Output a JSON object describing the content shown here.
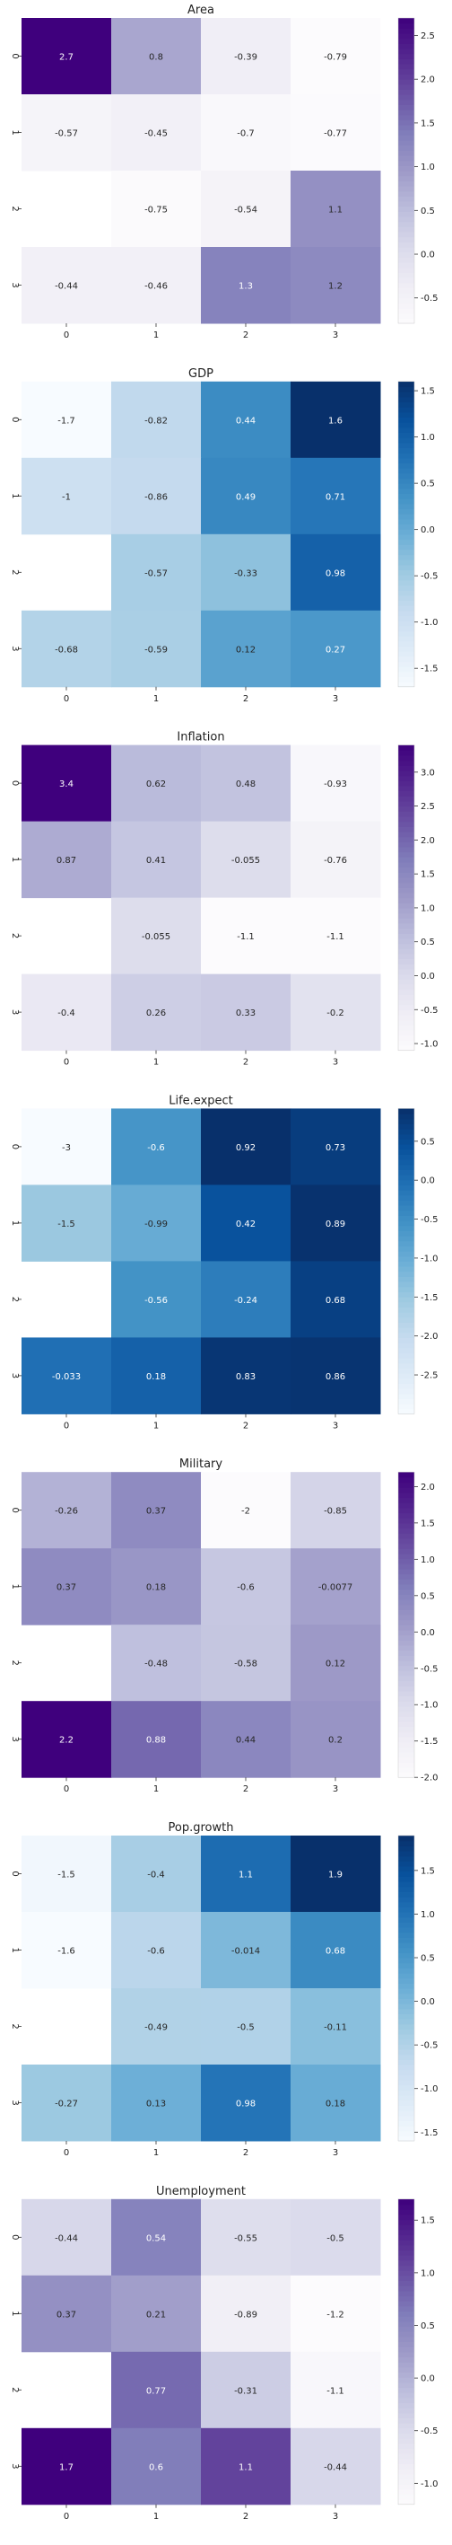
{
  "chart_data": [
    {
      "type": "heatmap",
      "title": "Area",
      "palette": "purples",
      "x": [
        "0",
        "1",
        "2",
        "3"
      ],
      "y": [
        "0",
        "1",
        "2",
        "3"
      ],
      "values": [
        [
          2.7,
          0.8,
          -0.39,
          -0.79
        ],
        [
          -0.57,
          -0.45,
          -0.7,
          -0.77
        ],
        [
          null,
          -0.75,
          -0.54,
          1.1
        ],
        [
          -0.44,
          -0.46,
          1.3,
          1.2
        ]
      ],
      "cell_labels": [
        [
          "2.7",
          "0.8",
          "-0.39",
          "-0.79"
        ],
        [
          "-0.57",
          "-0.45",
          "-0.7",
          "-0.77"
        ],
        [
          "",
          "-0.75",
          "-0.54",
          "1.1"
        ],
        [
          "-0.44",
          "-0.46",
          "1.3",
          "1.2"
        ]
      ],
      "vmin": -0.79,
      "vmax": 2.7,
      "colorbar_ticks": [
        "-0.5",
        "0.0",
        "0.5",
        "1.0",
        "1.5",
        "2.0",
        "2.5"
      ]
    },
    {
      "type": "heatmap",
      "title": "GDP",
      "palette": "blues",
      "x": [
        "0",
        "1",
        "2",
        "3"
      ],
      "y": [
        "0",
        "1",
        "2",
        "3"
      ],
      "values": [
        [
          -1.7,
          -0.82,
          0.44,
          1.6
        ],
        [
          -1,
          -0.86,
          0.49,
          0.71
        ],
        [
          null,
          -0.57,
          -0.33,
          0.98
        ],
        [
          -0.68,
          -0.59,
          0.12,
          0.27
        ]
      ],
      "cell_labels": [
        [
          "-1.7",
          "-0.82",
          "0.44",
          "1.6"
        ],
        [
          "-1",
          "-0.86",
          "0.49",
          "0.71"
        ],
        [
          "",
          "-0.57",
          "-0.33",
          "0.98"
        ],
        [
          "-0.68",
          "-0.59",
          "0.12",
          "0.27"
        ]
      ],
      "vmin": -1.7,
      "vmax": 1.6,
      "colorbar_ticks": [
        "-1.5",
        "-1.0",
        "-0.5",
        "0.0",
        "0.5",
        "1.0",
        "1.5"
      ]
    },
    {
      "type": "heatmap",
      "title": "Inflation",
      "palette": "purples",
      "x": [
        "0",
        "1",
        "2",
        "3"
      ],
      "y": [
        "0",
        "1",
        "2",
        "3"
      ],
      "values": [
        [
          3.4,
          0.62,
          0.48,
          -0.93
        ],
        [
          0.87,
          0.41,
          -0.055,
          -0.76
        ],
        [
          null,
          -0.055,
          -1.1,
          -1.1
        ],
        [
          -0.4,
          0.26,
          0.33,
          -0.2
        ]
      ],
      "cell_labels": [
        [
          "3.4",
          "0.62",
          "0.48",
          "-0.93"
        ],
        [
          "0.87",
          "0.41",
          "-0.055",
          "-0.76"
        ],
        [
          "",
          "-0.055",
          "-1.1",
          "-1.1"
        ],
        [
          "-0.4",
          "0.26",
          "0.33",
          "-0.2"
        ]
      ],
      "vmin": -1.1,
      "vmax": 3.4,
      "colorbar_ticks": [
        "-1.0",
        "-0.5",
        "0.0",
        "0.5",
        "1.0",
        "1.5",
        "2.0",
        "2.5",
        "3.0"
      ]
    },
    {
      "type": "heatmap",
      "title": "Life.expect",
      "palette": "blues",
      "x": [
        "0",
        "1",
        "2",
        "3"
      ],
      "y": [
        "0",
        "1",
        "2",
        "3"
      ],
      "values": [
        [
          -3,
          -0.6,
          0.92,
          0.73
        ],
        [
          -1.5,
          -0.99,
          0.42,
          0.89
        ],
        [
          null,
          -0.56,
          -0.24,
          0.68
        ],
        [
          -0.033,
          0.18,
          0.83,
          0.86
        ]
      ],
      "cell_labels": [
        [
          "-3",
          "-0.6",
          "0.92",
          "0.73"
        ],
        [
          "-1.5",
          "-0.99",
          "0.42",
          "0.89"
        ],
        [
          "",
          "-0.56",
          "-0.24",
          "0.68"
        ],
        [
          "-0.033",
          "0.18",
          "0.83",
          "0.86"
        ]
      ],
      "vmin": -3,
      "vmax": 0.92,
      "colorbar_ticks": [
        "-2.5",
        "-2.0",
        "-1.5",
        "-1.0",
        "-0.5",
        "0.0",
        "0.5"
      ]
    },
    {
      "type": "heatmap",
      "title": "Military",
      "palette": "purples",
      "x": [
        "0",
        "1",
        "2",
        "3"
      ],
      "y": [
        "0",
        "1",
        "2",
        "3"
      ],
      "values": [
        [
          -0.26,
          0.37,
          -2,
          -0.85
        ],
        [
          0.37,
          0.18,
          -0.6,
          -0.0077
        ],
        [
          null,
          -0.48,
          -0.58,
          0.12
        ],
        [
          2.2,
          0.88,
          0.44,
          0.2
        ]
      ],
      "cell_labels": [
        [
          "-0.26",
          "0.37",
          "-2",
          "-0.85"
        ],
        [
          "0.37",
          "0.18",
          "-0.6",
          "-0.0077"
        ],
        [
          "",
          "-0.48",
          "-0.58",
          "0.12"
        ],
        [
          "2.2",
          "0.88",
          "0.44",
          "0.2"
        ]
      ],
      "vmin": -2,
      "vmax": 2.2,
      "colorbar_ticks": [
        "-2.0",
        "-1.5",
        "-1.0",
        "-0.5",
        "0.0",
        "0.5",
        "1.0",
        "1.5",
        "2.0"
      ]
    },
    {
      "type": "heatmap",
      "title": "Pop.growth",
      "palette": "blues",
      "x": [
        "0",
        "1",
        "2",
        "3"
      ],
      "y": [
        "0",
        "1",
        "2",
        "3"
      ],
      "values": [
        [
          -1.5,
          -0.4,
          1.1,
          1.9
        ],
        [
          -1.6,
          -0.6,
          -0.014,
          0.68
        ],
        [
          null,
          -0.49,
          -0.5,
          -0.11
        ],
        [
          -0.27,
          0.13,
          0.98,
          0.18
        ]
      ],
      "cell_labels": [
        [
          "-1.5",
          "-0.4",
          "1.1",
          "1.9"
        ],
        [
          "-1.6",
          "-0.6",
          "-0.014",
          "0.68"
        ],
        [
          "",
          "-0.49",
          "-0.5",
          "-0.11"
        ],
        [
          "-0.27",
          "0.13",
          "0.98",
          "0.18"
        ]
      ],
      "vmin": -1.6,
      "vmax": 1.9,
      "colorbar_ticks": [
        "-1.5",
        "-1.0",
        "-0.5",
        "0.0",
        "0.5",
        "1.0",
        "1.5"
      ]
    },
    {
      "type": "heatmap",
      "title": "Unemployment",
      "palette": "purples",
      "x": [
        "0",
        "1",
        "2",
        "3"
      ],
      "y": [
        "0",
        "1",
        "2",
        "3"
      ],
      "values": [
        [
          -0.44,
          0.54,
          -0.55,
          -0.5
        ],
        [
          0.37,
          0.21,
          -0.89,
          -1.2
        ],
        [
          null,
          0.77,
          -0.31,
          -1.1
        ],
        [
          1.7,
          0.6,
          1.1,
          -0.44
        ]
      ],
      "cell_labels": [
        [
          "-0.44",
          "0.54",
          "-0.55",
          "-0.5"
        ],
        [
          "0.37",
          "0.21",
          "-0.89",
          "-1.2"
        ],
        [
          "",
          "0.77",
          "-0.31",
          "-1.1"
        ],
        [
          "1.7",
          "0.6",
          "1.1",
          "-0.44"
        ]
      ],
      "vmin": -1.2,
      "vmax": 1.7,
      "colorbar_ticks": [
        "-1.0",
        "-0.5",
        "0.0",
        "0.5",
        "1.0",
        "1.5"
      ]
    }
  ],
  "palettes": {
    "purples": [
      "#fcfbfd",
      "#efedf5",
      "#dadaeb",
      "#bcbddc",
      "#9e9ac8",
      "#807dba",
      "#6a51a3",
      "#54278f",
      "#3f007d"
    ],
    "blues": [
      "#f7fbff",
      "#deebf7",
      "#c6dbef",
      "#9ecae1",
      "#6baed6",
      "#4292c6",
      "#2171b5",
      "#08519c",
      "#08306b"
    ]
  }
}
